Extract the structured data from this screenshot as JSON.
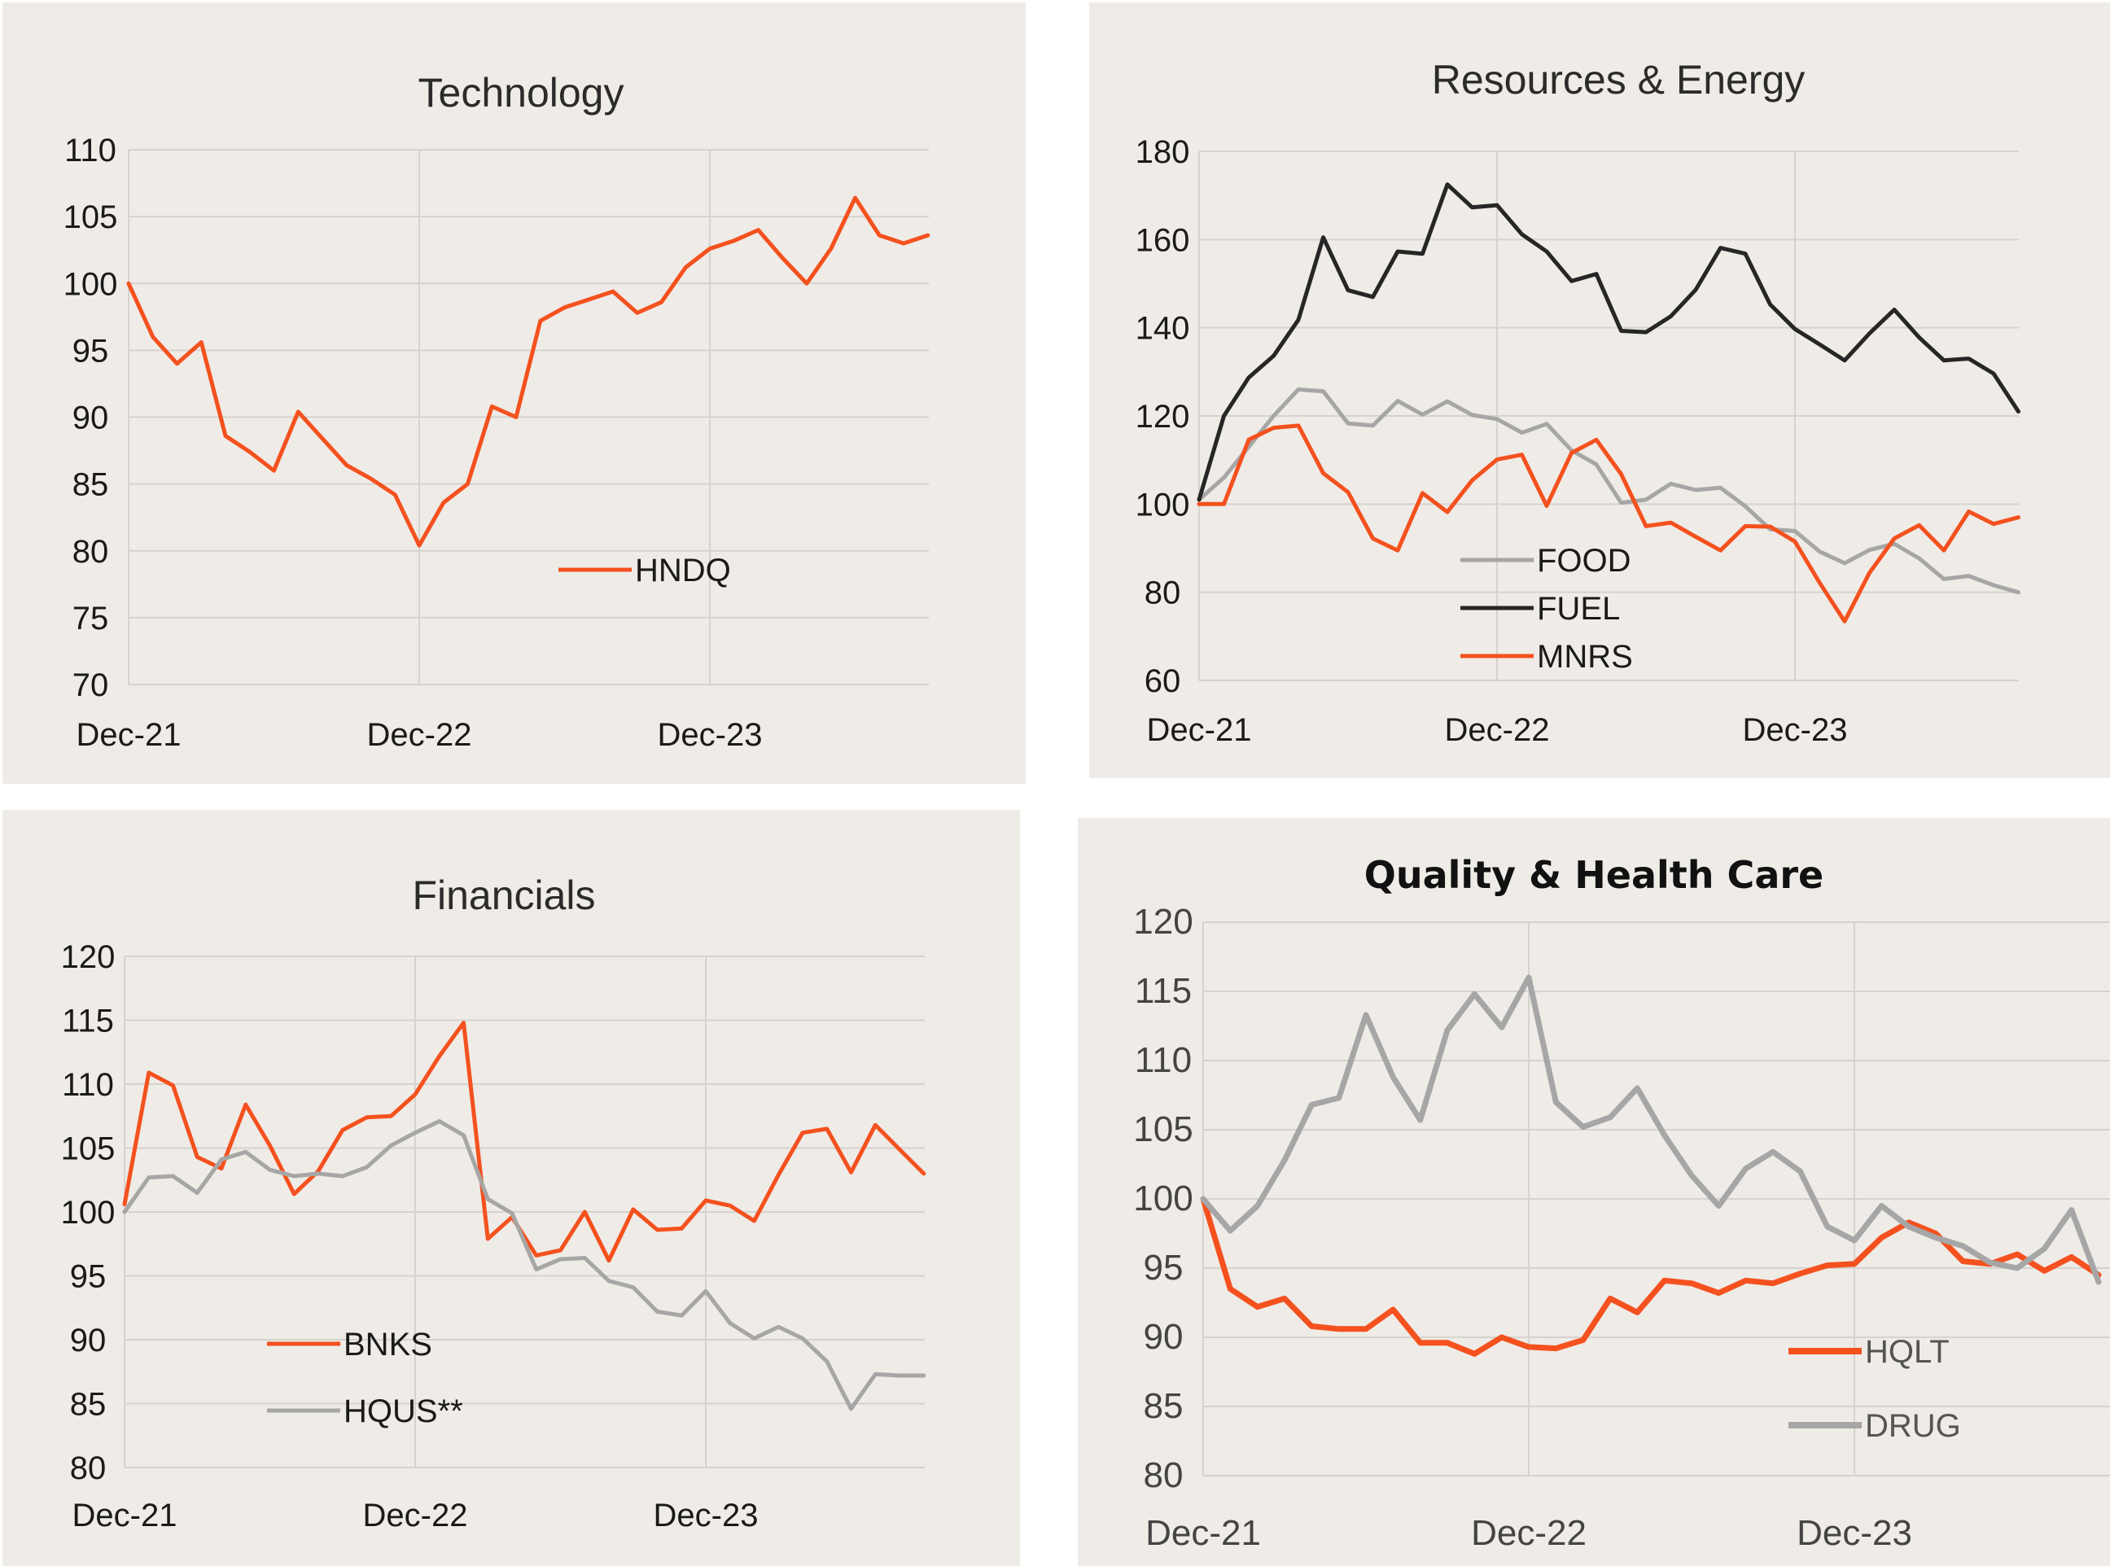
{
  "colors": {
    "panel_bg": "#efebe7",
    "orange": "#f4511e",
    "grey": "#a6a6a6",
    "black": "#262626",
    "grid": "#d6d2ce"
  },
  "chart_data": [
    {
      "type": "line",
      "title": "Technology",
      "x_ticks": [
        "Dec-21",
        "Dec-22",
        "Dec-23"
      ],
      "ylim": [
        70,
        110
      ],
      "y_ticks": [
        70,
        75,
        80,
        85,
        90,
        95,
        100,
        105,
        110
      ],
      "legend": "center",
      "grid": true,
      "series": [
        {
          "name": "HNDQ",
          "color": "#f4511e",
          "values": [
            100,
            96,
            94,
            95.6,
            88.6,
            87.4,
            86,
            90.4,
            88.4,
            86.4,
            85.4,
            84.2,
            80.4,
            83.6,
            85,
            90.8,
            90,
            97.2,
            98.2,
            98.8,
            99.4,
            97.8,
            98.6,
            101.2,
            102.6,
            103.2,
            104,
            101.9,
            100,
            102.6,
            106.4,
            103.6,
            103,
            103.6
          ]
        }
      ]
    },
    {
      "type": "line",
      "title": "Resources & Energy",
      "x_ticks": [
        "Dec-21",
        "Dec-22",
        "Dec-23"
      ],
      "ylim": [
        60,
        180
      ],
      "y_ticks": [
        60,
        80,
        100,
        120,
        140,
        160,
        180
      ],
      "legend": "bottom-left",
      "grid": true,
      "series": [
        {
          "name": "FOOD",
          "color": "#a6a6a6",
          "values": [
            101,
            106,
            113,
            120,
            126,
            125.6,
            118.3,
            117.8,
            123.4,
            120.3,
            123.3,
            120.2,
            119.3,
            116.2,
            118.2,
            112.2,
            109,
            100.3,
            101,
            104.6,
            103.2,
            103.7,
            99.5,
            94.3,
            93.9,
            89.2,
            86.6,
            89.6,
            91,
            87.7,
            83,
            83.7,
            81.6,
            80
          ]
        },
        {
          "name": "FUEL",
          "color": "#262626",
          "values": [
            101,
            120,
            128.7,
            133.6,
            141.8,
            160.5,
            148.5,
            147,
            157.3,
            156.8,
            172.5,
            167.3,
            167.8,
            161.2,
            157.3,
            150.6,
            152.2,
            139.3,
            139,
            142.6,
            148.6,
            158.1,
            156.8,
            145.3,
            139.7,
            136.2,
            132.6,
            138.7,
            144.1,
            137.8,
            132.6,
            133,
            129.6,
            121
          ]
        },
        {
          "name": "MNRS",
          "color": "#f4511e",
          "values": [
            100,
            100,
            114.6,
            117.3,
            117.8,
            107,
            102.7,
            92.2,
            89.5,
            102.5,
            98.2,
            105.4,
            110.1,
            111.2,
            99.6,
            111.6,
            114.6,
            106.8,
            95,
            95.8,
            92.6,
            89.5,
            95,
            94.9,
            91.5,
            82.1,
            73.4,
            84.4,
            92.2,
            95.2,
            89.5,
            98.3,
            95.5,
            97
          ]
        }
      ]
    },
    {
      "type": "line",
      "title": "Financials",
      "x_ticks": [
        "Dec-21",
        "Dec-22",
        "Dec-23"
      ],
      "ylim": [
        80,
        120
      ],
      "y_ticks": [
        80,
        85,
        90,
        95,
        100,
        105,
        110,
        115,
        120
      ],
      "legend": "bottom-left",
      "grid": true,
      "series": [
        {
          "name": "BNKS",
          "color": "#f4511e",
          "values": [
            100.6,
            110.9,
            109.9,
            104.3,
            103.4,
            108.4,
            105.2,
            101.4,
            103.2,
            106.4,
            107.4,
            107.5,
            109.2,
            112.2,
            114.8,
            97.9,
            99.6,
            96.6,
            97,
            100,
            96.2,
            100.2,
            98.6,
            98.7,
            100.9,
            100.5,
            99.3,
            102.9,
            106.2,
            106.5,
            103.1,
            106.8,
            104.9,
            103
          ]
        },
        {
          "name": "HQUS**",
          "color": "#a6a6a6",
          "values": [
            100,
            102.7,
            102.8,
            101.5,
            104.1,
            104.7,
            103.3,
            102.8,
            103,
            102.8,
            103.5,
            105.2,
            106.2,
            107.1,
            106,
            101,
            99.9,
            95.5,
            96.3,
            96.4,
            94.6,
            94.1,
            92.2,
            91.9,
            93.8,
            91.3,
            90.1,
            91,
            90.1,
            88.3,
            84.6,
            87.3,
            87.2,
            87.2
          ]
        }
      ]
    },
    {
      "type": "line",
      "title": "Quality & Health Care",
      "x_ticks": [
        "Dec-21",
        "Dec-22",
        "Dec-23"
      ],
      "ylim": [
        80,
        120
      ],
      "y_ticks": [
        80,
        85,
        90,
        95,
        100,
        105,
        110,
        115,
        120
      ],
      "legend": "bottom-right",
      "grid": true,
      "series": [
        {
          "name": "HQLT",
          "color": "#f4511e",
          "values": [
            100,
            93.5,
            92.2,
            92.8,
            90.8,
            90.6,
            90.6,
            92,
            89.6,
            89.6,
            88.8,
            90,
            89.3,
            89.2,
            89.8,
            92.8,
            91.8,
            94.1,
            93.9,
            93.2,
            94.1,
            93.9,
            94.6,
            95.2,
            95.3,
            97.2,
            98.3,
            97.5,
            95.5,
            95.3,
            96,
            94.8,
            95.8,
            94.5
          ]
        },
        {
          "name": "DRUG",
          "color": "#a6a6a6",
          "values": [
            100,
            97.7,
            99.5,
            102.8,
            106.8,
            107.3,
            113.3,
            108.8,
            105.7,
            112.2,
            114.8,
            112.4,
            116,
            107,
            105.2,
            105.9,
            108,
            104.6,
            101.7,
            99.5,
            102.2,
            103.4,
            102,
            98,
            97,
            99.5,
            98,
            97.2,
            96.6,
            95.4,
            95,
            96.4,
            99.2,
            94
          ]
        }
      ]
    }
  ]
}
